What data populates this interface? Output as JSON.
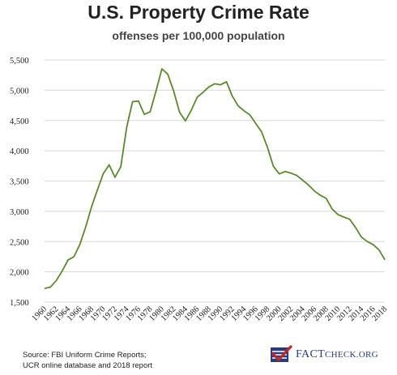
{
  "header": {
    "title": "U.S. Property Crime Rate",
    "subtitle": "offenses per 100,000 population"
  },
  "source": {
    "line1": "Source: FBI Uniform Crime Reports;",
    "line2": "UCR online database and 2018 report"
  },
  "logo": {
    "text_big": "FACT",
    "text_mid": "CHECK",
    "text_suffix": ".ORG",
    "colors": {
      "navy": "#2a3a7a",
      "red": "#c0282d"
    }
  },
  "chart_data": {
    "type": "line",
    "title": "U.S. Property Crime Rate",
    "subtitle": "offenses per 100,000 population",
    "xlabel": "",
    "ylabel": "",
    "ylim": [
      1500,
      5500
    ],
    "xlim": [
      1960,
      2018
    ],
    "yticks": [
      1500,
      2000,
      2500,
      3000,
      3500,
      4000,
      4500,
      5000,
      5500
    ],
    "ytick_labels": [
      "1,500",
      "2,000",
      "2,500",
      "3,000",
      "3,500",
      "4,000",
      "4,500",
      "5,000",
      "5,500"
    ],
    "xticks": [
      1960,
      1962,
      1964,
      1966,
      1968,
      1970,
      1972,
      1974,
      1976,
      1978,
      1980,
      1982,
      1984,
      1986,
      1988,
      1990,
      1992,
      1994,
      1996,
      1998,
      2000,
      2002,
      2004,
      2006,
      2008,
      2010,
      2012,
      2014,
      2016,
      2018
    ],
    "grid": "horizontal",
    "line_color": "#5a8a2c",
    "series": [
      {
        "x": [
          1960,
          1961,
          1962,
          1963,
          1964,
          1965,
          1966,
          1967,
          1968,
          1969,
          1970,
          1971,
          1972,
          1973,
          1974,
          1975,
          1976,
          1977,
          1978,
          1979,
          1980,
          1981,
          1982,
          1983,
          1984,
          1985,
          1986,
          1987,
          1988,
          1989,
          1990,
          1991,
          1992,
          1993,
          1994,
          1995,
          1996,
          1997,
          1998,
          1999,
          2000,
          2001,
          2002,
          2003,
          2004,
          2005,
          2006,
          2007,
          2008,
          2009,
          2010,
          2011,
          2012,
          2013,
          2014,
          2015,
          2016,
          2017,
          2018
        ],
        "y": [
          1726,
          1747,
          1857,
          2012,
          2197,
          2249,
          2447,
          2737,
          3071,
          3351,
          3621,
          3768,
          3561,
          3737,
          4389,
          4811,
          4820,
          4601,
          4643,
          4987,
          5353,
          5264,
          4988,
          4637,
          4493,
          4666,
          4882,
          4963,
          5054,
          5107,
          5089,
          5140,
          4903,
          4740,
          4660,
          4591,
          4450,
          4312,
          4053,
          3744,
          3618,
          3658,
          3631,
          3591,
          3514,
          3432,
          3335,
          3264,
          3212,
          3041,
          2946,
          2905,
          2868,
          2733,
          2574,
          2501,
          2451,
          2362,
          2200
        ]
      }
    ]
  }
}
